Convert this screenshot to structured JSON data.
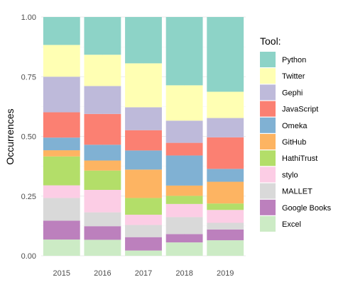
{
  "chart_data": {
    "type": "bar",
    "stacked": true,
    "normalized": true,
    "title": "",
    "xlabel": "",
    "ylabel": "Occurrences",
    "ylim": [
      0,
      1
    ],
    "y_ticks": [
      "0.00",
      "0.25",
      "0.50",
      "0.75",
      "1.00"
    ],
    "y_tick_values": [
      0,
      0.25,
      0.5,
      0.75,
      1.0
    ],
    "grid": true,
    "legend_position": "right",
    "legend_title": "Tool:",
    "categories": [
      "2015",
      "2016",
      "2017",
      "2018",
      "2019"
    ],
    "series": [
      {
        "name": "Excel",
        "color": "#CCEBC5",
        "values": [
          0.068,
          0.067,
          0.022,
          0.056,
          0.065
        ]
      },
      {
        "name": "Google Books",
        "color": "#BC80BD",
        "values": [
          0.079,
          0.057,
          0.056,
          0.035,
          0.045
        ]
      },
      {
        "name": "MALLET",
        "color": "#D9D9D9",
        "values": [
          0.095,
          0.058,
          0.051,
          0.071,
          0.028
        ]
      },
      {
        "name": "stylo",
        "color": "#FCCDE5",
        "values": [
          0.053,
          0.094,
          0.043,
          0.055,
          0.054
        ]
      },
      {
        "name": "HathiTrust",
        "color": "#B3DE69",
        "values": [
          0.121,
          0.081,
          0.07,
          0.034,
          0.027
        ]
      },
      {
        "name": "GitHub",
        "color": "#FDB462",
        "values": [
          0.026,
          0.042,
          0.119,
          0.043,
          0.091
        ]
      },
      {
        "name": "Omeka",
        "color": "#80B1D3",
        "values": [
          0.053,
          0.066,
          0.08,
          0.126,
          0.054
        ]
      },
      {
        "name": "JavaScript",
        "color": "#FB8072",
        "values": [
          0.106,
          0.129,
          0.085,
          0.053,
          0.132
        ]
      },
      {
        "name": "Gephi",
        "color": "#BEBADA",
        "values": [
          0.149,
          0.117,
          0.096,
          0.093,
          0.081
        ]
      },
      {
        "name": "Twitter",
        "color": "#FFFFB3",
        "values": [
          0.133,
          0.131,
          0.184,
          0.148,
          0.11
        ]
      },
      {
        "name": "Python",
        "color": "#8DD3C7",
        "values": [
          0.117,
          0.158,
          0.194,
          0.286,
          0.313
        ]
      }
    ],
    "legend_order": [
      "Python",
      "Twitter",
      "Gephi",
      "JavaScript",
      "Omeka",
      "GitHub",
      "HathiTrust",
      "stylo",
      "MALLET",
      "Google Books",
      "Excel"
    ]
  }
}
